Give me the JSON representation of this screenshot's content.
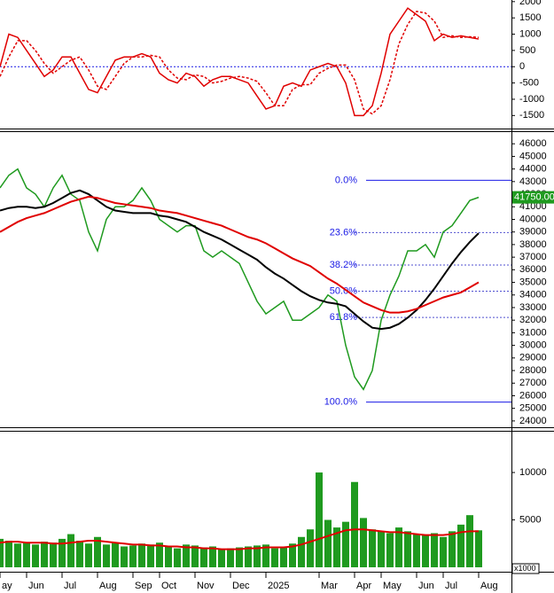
{
  "chart_data": [
    {
      "type": "line",
      "ylim": [
        -1900,
        2050
      ],
      "yticks": [
        -1500,
        -1000,
        -500,
        0,
        500,
        1000,
        1500,
        2000
      ],
      "hline": 0,
      "series": [
        {
          "color": "#e00000",
          "style": "line",
          "values": [
            0,
            1000,
            900,
            500,
            100,
            -300,
            -100,
            300,
            300,
            -200,
            -700,
            -800,
            -300,
            200,
            300,
            300,
            400,
            300,
            -200,
            -400,
            -500,
            -200,
            -300,
            -600,
            -400,
            -300,
            -300,
            -400,
            -500,
            -900,
            -1300,
            -1200,
            -600,
            -500,
            -600,
            -100,
            0,
            100,
            0,
            -500,
            -1500,
            -1500,
            -1200,
            -200,
            1000,
            1400,
            1800,
            1600,
            1400,
            800,
            1000,
            900,
            950,
            900,
            850
          ]
        },
        {
          "color": "#e00000",
          "style": "line",
          "dash": true,
          "values": [
            -300,
            300,
            800,
            800,
            500,
            100,
            -200,
            0,
            200,
            300,
            -100,
            -600,
            -700,
            -300,
            100,
            300,
            300,
            350,
            300,
            -100,
            -350,
            -400,
            -250,
            -300,
            -500,
            -450,
            -350,
            -300,
            -350,
            -450,
            -800,
            -1200,
            -1200,
            -700,
            -550,
            -550,
            -200,
            -50,
            50,
            50,
            -400,
            -1300,
            -1450,
            -1200,
            -400,
            700,
            1300,
            1700,
            1650,
            1400,
            900,
            950,
            900,
            920,
            900
          ]
        }
      ]
    },
    {
      "type": "line",
      "ylim": [
        23500,
        47000
      ],
      "yticks": [
        24000,
        25000,
        26000,
        27000,
        28000,
        29000,
        30000,
        31000,
        32000,
        33000,
        34000,
        35000,
        36000,
        37000,
        38000,
        39000,
        40000,
        41000,
        42000,
        43000,
        44000,
        45000,
        46000
      ],
      "last_price": {
        "value": 41750,
        "label": "41750.00"
      },
      "fibonacci": [
        {
          "label": "0.0%",
          "value": 43100
        },
        {
          "label": "23.6%",
          "value": 38950
        },
        {
          "label": "38.2%",
          "value": 36380
        },
        {
          "label": "50.0%",
          "value": 34300
        },
        {
          "label": "61.8%",
          "value": 32220
        },
        {
          "label": "100.0%",
          "value": 25500
        }
      ],
      "series": [
        {
          "color": "#1f9a1f",
          "style": "line",
          "values": [
            42500,
            43500,
            44000,
            42500,
            42000,
            41000,
            42500,
            43500,
            42000,
            41500,
            39000,
            37500,
            40000,
            41000,
            41000,
            41500,
            42500,
            41500,
            40000,
            39500,
            39000,
            39500,
            39500,
            37500,
            37000,
            37500,
            37000,
            36500,
            35000,
            33500,
            32500,
            33000,
            33500,
            32000,
            32000,
            32500,
            33000,
            34000,
            33500,
            30000,
            27500,
            26500,
            28000,
            32000,
            34000,
            35500,
            37500,
            37500,
            38000,
            37000,
            39000,
            39500,
            40500,
            41500,
            41750
          ]
        },
        {
          "color": "#000000",
          "style": "line",
          "width": 2,
          "values": [
            40700,
            40900,
            41000,
            41000,
            40900,
            41000,
            41300,
            41700,
            42100,
            42300,
            42000,
            41500,
            41000,
            40700,
            40600,
            40500,
            40500,
            40500,
            40300,
            40200,
            40000,
            39800,
            39400,
            39000,
            38700,
            38400,
            38000,
            37600,
            37200,
            36800,
            36200,
            35700,
            35300,
            34800,
            34300,
            33900,
            33600,
            33400,
            33300,
            33100,
            32500,
            31900,
            31400,
            31300,
            31400,
            31700,
            32200,
            32800,
            33600,
            34500,
            35500,
            36500,
            37400,
            38200,
            38900
          ]
        },
        {
          "color": "#e00000",
          "style": "line",
          "width": 2,
          "values": [
            39000,
            39400,
            39800,
            40100,
            40300,
            40500,
            40800,
            41100,
            41400,
            41600,
            41800,
            41700,
            41500,
            41300,
            41200,
            41100,
            41000,
            40900,
            40700,
            40600,
            40500,
            40300,
            40100,
            39900,
            39700,
            39500,
            39200,
            38900,
            38600,
            38400,
            38100,
            37700,
            37300,
            36900,
            36600,
            36300,
            35800,
            35300,
            34900,
            34400,
            33900,
            33400,
            33100,
            32800,
            32600,
            32600,
            32700,
            32900,
            33200,
            33500,
            33800,
            34000,
            34200,
            34600,
            35000
          ]
        }
      ]
    },
    {
      "type": "bar",
      "ylim": [
        0,
        14400
      ],
      "yticks": [
        0,
        5000,
        10000
      ],
      "unit_label": "x1000",
      "categories": [
        "ay",
        null,
        null,
        "Jun",
        null,
        null,
        null,
        "Jul",
        null,
        null,
        null,
        "Aug",
        null,
        null,
        null,
        "Sep",
        null,
        null,
        "Oct",
        null,
        null,
        null,
        "Nov",
        null,
        null,
        null,
        "Dec",
        null,
        null,
        null,
        "2025",
        null,
        null,
        null,
        null,
        null,
        "Mar",
        null,
        null,
        null,
        "Apr",
        null,
        null,
        "May",
        null,
        null,
        null,
        "Jun",
        null,
        null,
        "Jul",
        null,
        null,
        null,
        "Aug"
      ],
      "series": [
        {
          "color": "#1f9a1f",
          "style": "bars",
          "values": [
            3000,
            2800,
            2500,
            2600,
            2400,
            2700,
            2600,
            3000,
            3500,
            2800,
            2500,
            3200,
            2400,
            2600,
            2200,
            2300,
            2500,
            2400,
            2600,
            2200,
            2000,
            2400,
            2300,
            2100,
            2200,
            1900,
            2000,
            2100,
            2200,
            2300,
            2400,
            2000,
            2100,
            2500,
            3200,
            4000,
            10000,
            5000,
            4200,
            4800,
            9000,
            5200,
            4000,
            3800,
            3600,
            4200,
            3800,
            3500,
            3400,
            3600,
            3200,
            3800,
            4500,
            5500,
            3900
          ]
        },
        {
          "color": "#e00000",
          "style": "line",
          "width": 2,
          "values": [
            2600,
            2700,
            2700,
            2600,
            2600,
            2600,
            2500,
            2500,
            2600,
            2700,
            2800,
            2800,
            2700,
            2600,
            2500,
            2400,
            2400,
            2300,
            2300,
            2200,
            2200,
            2100,
            2100,
            2000,
            2000,
            1900,
            1900,
            1900,
            2000,
            2000,
            2100,
            2100,
            2100,
            2200,
            2400,
            2700,
            3000,
            3300,
            3600,
            3900,
            4000,
            4000,
            3900,
            3800,
            3700,
            3700,
            3600,
            3500,
            3400,
            3400,
            3400,
            3500,
            3700,
            3800,
            3800
          ]
        }
      ]
    }
  ]
}
